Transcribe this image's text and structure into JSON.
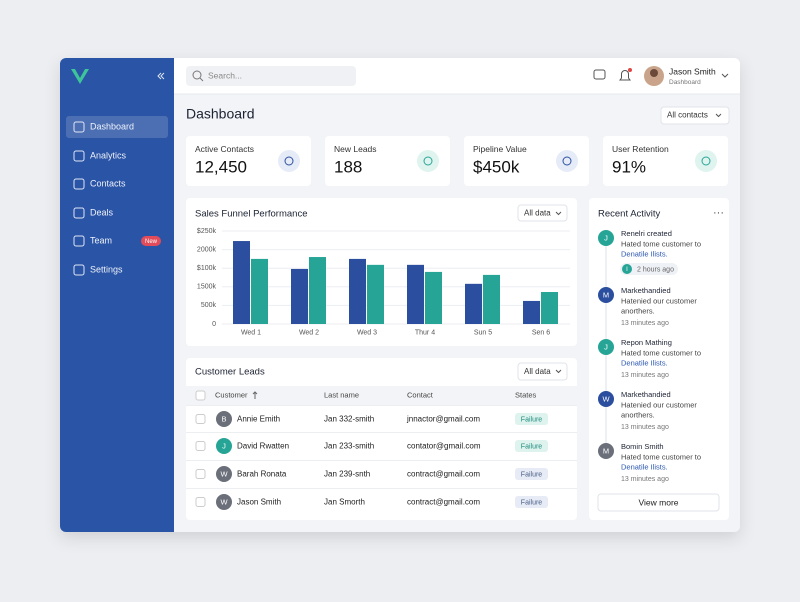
{
  "sidebar": {
    "menu": [
      "Dashboard",
      "Analytics",
      "Contacts",
      "Deals",
      "Team",
      "Settings"
    ],
    "badge": "New"
  },
  "header": {
    "search": "Search...",
    "user_name": "Jason Smith",
    "user_role": "Dashboard"
  },
  "page_title": "Dashboard",
  "filter": "All contacts",
  "stats": [
    {
      "label": "Active Contacts",
      "value": "12,450"
    },
    {
      "label": "New Leads",
      "value": "188"
    },
    {
      "label": "Pipeline Value",
      "value": "$450k"
    },
    {
      "label": "User Retention",
      "value": "91%"
    }
  ],
  "chart_data": {
    "type": "bar",
    "title": "Sales Funnel Performance",
    "filter": "All data",
    "categories": [
      "Wed 1",
      "Wed 2",
      "Wed 3",
      "Thur 4",
      "Sun 5",
      "Sen 6"
    ],
    "series": [
      {
        "color": "#2b4f9e",
        "values": [
          223,
          148,
          175,
          159,
          108,
          62
        ]
      },
      {
        "color": "#26a597",
        "values": [
          175,
          180,
          159,
          140,
          132,
          86
        ]
      }
    ],
    "ylim": [
      0,
      250
    ],
    "yticks": [
      0,
      {
        "value": 50,
        "label": "500k"
      },
      {
        "value": 100,
        "label": "1500k"
      },
      {
        "value": 150,
        "label": "$100k"
      },
      {
        "value": 200,
        "label": "2000k"
      },
      {
        "value": 250,
        "label": "$250k"
      }
    ],
    "grid": true
  },
  "leads": {
    "title": "Customer Leads",
    "filter": "All data",
    "columns": [
      "Customer",
      "Last name",
      "Contact",
      "States"
    ],
    "initials": [
      "B",
      "J",
      "W",
      "W"
    ],
    "rows": [
      [
        "Annie Emith",
        "Jan 332-smith",
        "jnnactor@gmail.com",
        "Failure"
      ],
      [
        "David Rwatten",
        "Jan 233-smith",
        "contator@gmail.com",
        "Failure"
      ],
      [
        "Barah Ronata",
        "Jan 239-snth",
        "contract@gmail.com",
        "Failure"
      ],
      [
        "Jason Smith",
        "Jan Smorth",
        "contract@gmail.com",
        "Failure"
      ]
    ]
  },
  "activity": {
    "title": "Recent Activity",
    "button": "View more",
    "items": [
      {
        "initial": "J",
        "title": "Renelri created",
        "text": "Hated tome customer to",
        "link": "Denatile Ilists.",
        "time_initial": "I",
        "time": "2 hours ago"
      },
      {
        "initial": "M",
        "title": "Markethandied",
        "text": "Hatenied our customer",
        "text2": "anorthers.",
        "time": "13 minutes ago"
      },
      {
        "initial": "J",
        "title": "Repon Mathing",
        "text": "Hated tome customer to",
        "link": "Denatile Ilists.",
        "time": "13 minutes ago"
      },
      {
        "initial": "W",
        "title": "Markethandied",
        "text": "Hatenied our customer",
        "text2": "anorthers.",
        "time": "13 minutes ago"
      },
      {
        "initial": "M",
        "title": "Bomin Smith",
        "text": "Hated tome customer to",
        "link": "Denatile Ilists.",
        "time": "13 minutes ago"
      }
    ]
  }
}
